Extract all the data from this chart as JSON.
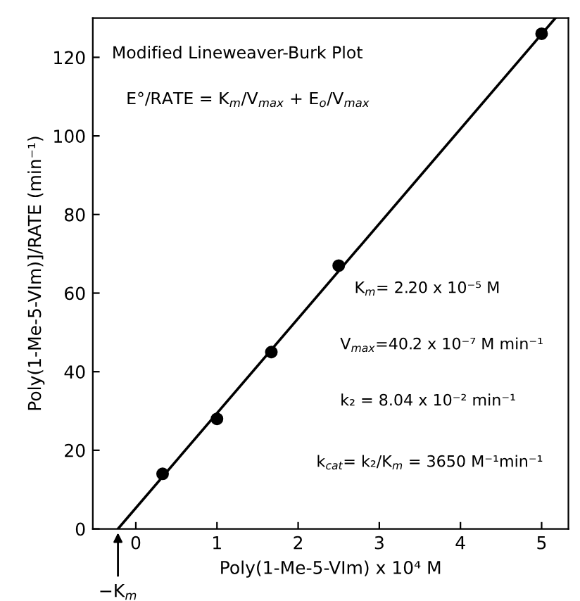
{
  "chart_data": {
    "type": "scatter",
    "xlabel": "Poly(1-Me-5-VIm) x 10⁴ M",
    "ylabel": "Poly(1-Me-5-VIm)]/RATE (min⁻¹)",
    "xlim": [
      -0.53,
      5.33
    ],
    "ylim": [
      0,
      130
    ],
    "xticks": [
      0,
      1,
      2,
      3,
      4,
      5
    ],
    "yticks": [
      0,
      20,
      40,
      60,
      80,
      100,
      120
    ],
    "grid": false,
    "legend": false,
    "series": [
      {
        "color": "#000000",
        "marker": "circle",
        "x": [
          0.33,
          1.0,
          1.67,
          2.5,
          5.0
        ],
        "values": [
          14,
          28,
          45,
          67,
          126
        ]
      },
      {
        "type": "line",
        "color": "#000000",
        "marker": "none",
        "line_style": "solid",
        "x": [
          -0.22,
          5.17
        ],
        "values": [
          0,
          130
        ]
      }
    ],
    "annotations": [
      "Modified Lineweaver-Burk Plot",
      "E°/RATE = K$_{m}$/V$_{max}$ + E$_{o}$/V$_{max}$",
      "K$_{m}$= 2.20 x 10⁻⁵ M",
      "V$_{max}$=40.2 x 10⁻⁷ M min⁻¹",
      "k₂ = 8.04 x 10⁻² min⁻¹",
      "k$_{cat}$= k₂/K$_{m}$ = 3650 M⁻¹min⁻¹",
      {
        "text": "−K$_{m}$",
        "x": -0.22,
        "y": 0
      }
    ]
  }
}
